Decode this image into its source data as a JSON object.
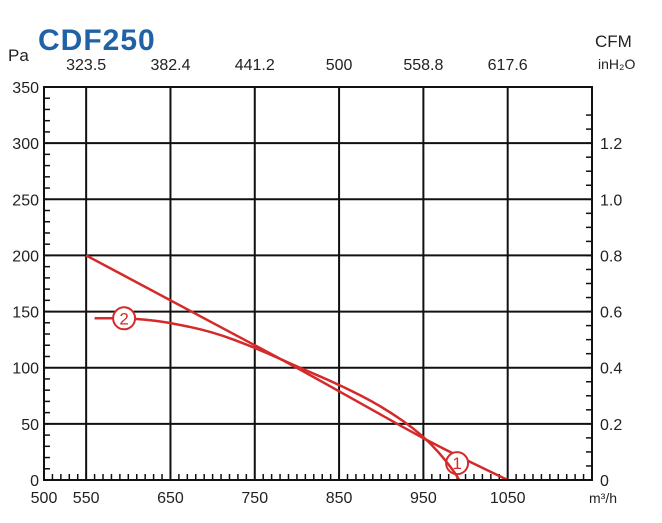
{
  "colors": {
    "title": "#1f63a6",
    "curve": "#d42a2a",
    "grid": "#111111"
  },
  "chart_data": {
    "type": "line",
    "title": "CDF250",
    "left_unit": "Pa",
    "right_unit": "inH₂O",
    "top_unit": "CFM",
    "bottom_unit": "m³/h",
    "xlim": [
      500,
      1150
    ],
    "ylim": [
      0,
      350
    ],
    "x_ticks": [
      550,
      650,
      750,
      850,
      950,
      1050
    ],
    "x_ticks_labeled": [
      {
        "value": 500,
        "label": "500"
      },
      {
        "value": 550,
        "label": "550"
      },
      {
        "value": 650,
        "label": "650"
      },
      {
        "value": 750,
        "label": "750"
      },
      {
        "value": 850,
        "label": "850"
      },
      {
        "value": 950,
        "label": "950"
      },
      {
        "value": 1050,
        "label": "1050"
      }
    ],
    "y_ticks": [
      0,
      50,
      100,
      150,
      200,
      250,
      300,
      350
    ],
    "top_ticks": [
      {
        "value": 550,
        "label": "323.5"
      },
      {
        "value": 650,
        "label": "382.4"
      },
      {
        "value": 750,
        "label": "441.2"
      },
      {
        "value": 850,
        "label": "500"
      },
      {
        "value": 950,
        "label": "558.8"
      },
      {
        "value": 1050,
        "label": "617.6"
      }
    ],
    "right_ticks": [
      {
        "value": 0,
        "label": "0"
      },
      {
        "value": 50,
        "label": "0.2"
      },
      {
        "value": 100,
        "label": "0.4"
      },
      {
        "value": 150,
        "label": "0.6"
      },
      {
        "value": 200,
        "label": "0.8"
      },
      {
        "value": 250,
        "label": "1.0"
      },
      {
        "value": 300,
        "label": "1.2"
      }
    ],
    "grid": true,
    "series": [
      {
        "name": "1",
        "marker_label": "1",
        "marker_at": [
          990,
          15
        ],
        "x": [
          550,
          650,
          750,
          800,
          850,
          900,
          950,
          1000,
          1050
        ],
        "y": [
          200,
          160,
          120,
          100,
          79,
          58,
          37,
          18,
          0
        ]
      },
      {
        "name": "2",
        "marker_label": "2",
        "marker_at": [
          595,
          144
        ],
        "x": [
          560,
          595,
          620,
          650,
          700,
          750,
          800,
          850,
          900,
          950,
          985,
          1000
        ],
        "y": [
          144,
          144,
          143,
          140,
          132,
          118,
          101,
          85,
          66,
          40,
          10,
          -10
        ]
      }
    ]
  }
}
